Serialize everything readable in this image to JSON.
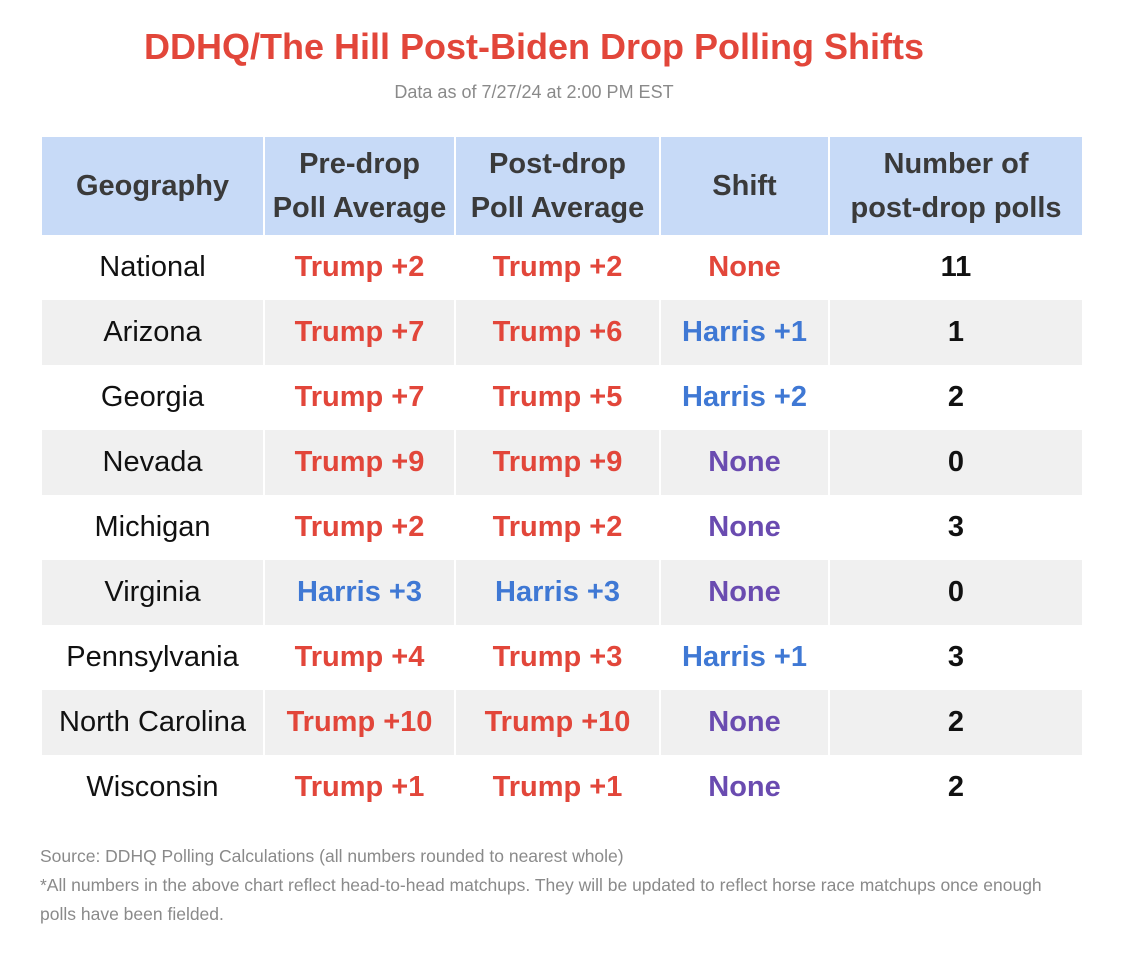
{
  "chart_data": {
    "type": "table",
    "title": "DDHQ/The Hill Post-Biden Drop Polling Shifts",
    "subtitle": "Data as of 7/27/24 at 2:00 PM EST",
    "columns": [
      {
        "key": "geo",
        "label_lines": [
          "Geography"
        ]
      },
      {
        "key": "pre",
        "label_lines": [
          "Pre-drop",
          "Poll Average"
        ]
      },
      {
        "key": "post",
        "label_lines": [
          "Post-drop",
          "Poll Average"
        ]
      },
      {
        "key": "shift",
        "label_lines": [
          "Shift"
        ]
      },
      {
        "key": "polls",
        "label_lines": [
          "Number of",
          "post-drop polls"
        ]
      }
    ],
    "rows": [
      {
        "geo": "National",
        "pre": "Trump +2",
        "post": "Trump +2",
        "shift": "None",
        "polls": "11"
      },
      {
        "geo": "Arizona",
        "pre": "Trump +7",
        "post": "Trump +6",
        "shift": "Harris +1",
        "polls": "1"
      },
      {
        "geo": "Georgia",
        "pre": "Trump +7",
        "post": "Trump +5",
        "shift": "Harris +2",
        "polls": "2"
      },
      {
        "geo": "Nevada",
        "pre": "Trump +9",
        "post": "Trump +9",
        "shift": "None",
        "polls": "0"
      },
      {
        "geo": "Michigan",
        "pre": "Trump +2",
        "post": "Trump +2",
        "shift": "None",
        "polls": "3"
      },
      {
        "geo": "Virginia",
        "pre": "Harris +3",
        "post": "Harris +3",
        "shift": "None",
        "polls": "0"
      },
      {
        "geo": "Pennsylvania",
        "pre": "Trump +4",
        "post": "Trump +3",
        "shift": "Harris +1",
        "polls": "3"
      },
      {
        "geo": "North Carolina",
        "pre": "Trump +10",
        "post": "Trump +10",
        "shift": "None",
        "polls": "2"
      },
      {
        "geo": "Wisconsin",
        "pre": "Trump +1",
        "post": "Trump +1",
        "shift": "None",
        "polls": "2"
      }
    ]
  },
  "footnote": {
    "source": "Source: DDHQ Polling Calculations (all numbers rounded to nearest whole)",
    "note": "*All numbers in the above chart reflect head-to-head matchups. They will be updated to reflect horse race matchups once enough polls have been fielded."
  },
  "colors": {
    "title": "#e2463a",
    "trump": "#e2463a",
    "harris": "#3f78d4",
    "none_national": "#e2463a",
    "none": "#6a4bb0",
    "header_bg": "#c7daf7",
    "stripe_bg": "#f0f0f0"
  }
}
